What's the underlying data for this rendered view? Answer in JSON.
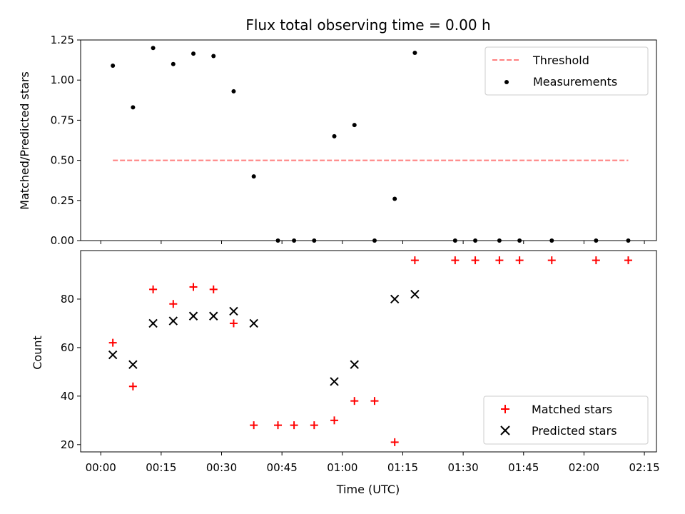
{
  "chart_data": [
    {
      "type": "scatter",
      "title": "Flux total observing time = 0.00 h",
      "xlabel": "",
      "ylabel": "Matched/Predicted stars",
      "ylim": [
        0,
        1.25
      ],
      "yticks": [
        "0.00",
        "0.25",
        "0.50",
        "0.75",
        "1.00",
        "1.25"
      ],
      "legend_position": "top-right",
      "threshold": {
        "name": "Threshold",
        "y": 0.5,
        "x_start": 3,
        "x_end": 131,
        "color": "#ff7f7f",
        "style": "dashed"
      },
      "series": [
        {
          "name": "Measurements",
          "marker": "dot",
          "color": "#000000",
          "points": [
            [
              3,
              1.09
            ],
            [
              8,
              0.83
            ],
            [
              13,
              1.2
            ],
            [
              18,
              1.1
            ],
            [
              23,
              1.165
            ],
            [
              28,
              1.15
            ],
            [
              33,
              0.93
            ],
            [
              38,
              0.4
            ],
            [
              44,
              0.0
            ],
            [
              48,
              0.0
            ],
            [
              53,
              0.0
            ],
            [
              58,
              0.65
            ],
            [
              63,
              0.72
            ],
            [
              68,
              0.0
            ],
            [
              73,
              0.26
            ],
            [
              78,
              1.17
            ],
            [
              88,
              0.0
            ],
            [
              93,
              0.0
            ],
            [
              99,
              0.0
            ],
            [
              104,
              0.0
            ],
            [
              112,
              0.0
            ],
            [
              123,
              0.0
            ],
            [
              131,
              0.0
            ]
          ]
        }
      ]
    },
    {
      "type": "scatter",
      "xlabel": "Time (UTC)",
      "ylabel": "Count",
      "ylim": [
        17,
        100
      ],
      "yticks": [
        "20",
        "40",
        "60",
        "80"
      ],
      "xlim": [
        -5,
        138
      ],
      "xtick_values": [
        0,
        15,
        30,
        45,
        60,
        75,
        90,
        105,
        120,
        135
      ],
      "xticks": [
        "00:00",
        "00:15",
        "00:30",
        "00:45",
        "01:00",
        "01:15",
        "01:30",
        "01:45",
        "02:00",
        "02:15"
      ],
      "legend_position": "bottom-right",
      "series": [
        {
          "name": "Matched stars",
          "marker": "plus",
          "color": "#ff0000",
          "points": [
            [
              3,
              62
            ],
            [
              8,
              44
            ],
            [
              13,
              84
            ],
            [
              18,
              78
            ],
            [
              23,
              85
            ],
            [
              28,
              84
            ],
            [
              33,
              70
            ],
            [
              38,
              28
            ],
            [
              44,
              28
            ],
            [
              48,
              28
            ],
            [
              53,
              28
            ],
            [
              58,
              30
            ],
            [
              63,
              38
            ],
            [
              68,
              38
            ],
            [
              73,
              21
            ],
            [
              78,
              96
            ],
            [
              88,
              96
            ],
            [
              93,
              96
            ],
            [
              99,
              96
            ],
            [
              104,
              96
            ],
            [
              112,
              96
            ],
            [
              123,
              96
            ],
            [
              131,
              96
            ]
          ]
        },
        {
          "name": "Predicted stars",
          "marker": "x",
          "color": "#000000",
          "points": [
            [
              3,
              57
            ],
            [
              8,
              53
            ],
            [
              13,
              70
            ],
            [
              18,
              71
            ],
            [
              23,
              73
            ],
            [
              28,
              73
            ],
            [
              33,
              75
            ],
            [
              38,
              70
            ],
            [
              58,
              46
            ],
            [
              63,
              53
            ],
            [
              73,
              80
            ],
            [
              78,
              82
            ]
          ]
        }
      ]
    }
  ]
}
